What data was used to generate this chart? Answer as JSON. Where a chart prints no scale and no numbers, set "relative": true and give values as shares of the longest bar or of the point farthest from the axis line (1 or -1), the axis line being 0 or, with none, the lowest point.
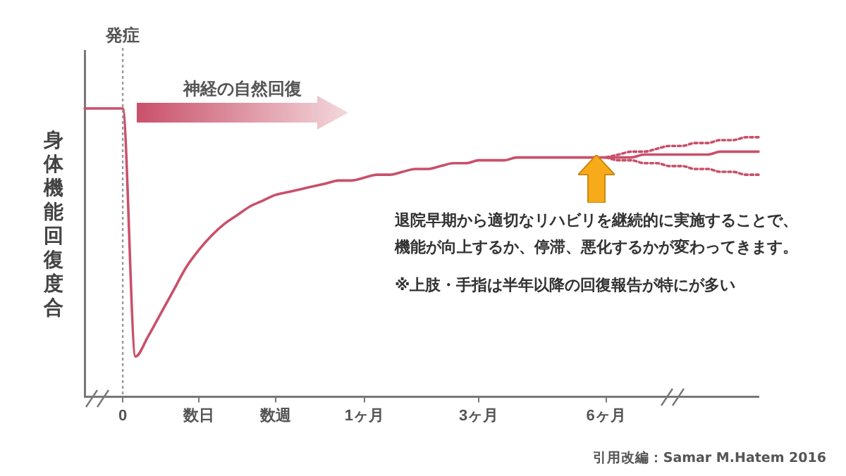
{
  "chart_data": {
    "type": "line",
    "relative": true,
    "ylabel": "身体機能回復度合",
    "categories": [
      null,
      null,
      null,
      "0",
      null,
      null,
      null,
      null,
      null,
      "数日",
      null,
      null,
      null,
      null,
      null,
      "数週",
      null,
      null,
      null,
      null,
      null,
      null,
      "1ヶ月",
      null,
      null,
      null,
      null,
      null,
      null,
      null,
      null,
      "3ヶ月",
      null,
      null,
      null,
      null,
      null,
      null,
      null,
      null,
      null,
      "6ヶ月",
      null,
      null,
      null,
      null,
      null,
      null,
      null,
      null,
      null,
      null,
      null,
      null
    ],
    "series": [
      {
        "color": "#c9506a",
        "line_style": "solid",
        "values": [
          1,
          1,
          1,
          1,
          0.14,
          0.21,
          0.29,
          0.37,
          0.45,
          0.51,
          0.56,
          0.6,
          0.63,
          0.66,
          0.68,
          0.7,
          0.71,
          0.72,
          0.73,
          0.74,
          0.75,
          0.75,
          0.76,
          0.77,
          0.77,
          0.78,
          0.79,
          0.79,
          0.8,
          0.81,
          0.81,
          0.82,
          0.82,
          0.82,
          0.83,
          0.83,
          0.83,
          0.83,
          0.83,
          0.83,
          0.83,
          0.83,
          0.83,
          0.83,
          0.84,
          0.84,
          0.84,
          0.84,
          0.84,
          0.84,
          0.85,
          0.85,
          0.85,
          0.85
        ]
      },
      {
        "color": "#c9506a",
        "line_style": "dotted",
        "values": [
          null,
          null,
          null,
          null,
          null,
          null,
          null,
          null,
          null,
          null,
          null,
          null,
          null,
          null,
          null,
          null,
          null,
          null,
          null,
          null,
          null,
          null,
          null,
          null,
          null,
          null,
          null,
          null,
          null,
          null,
          null,
          null,
          null,
          null,
          null,
          null,
          null,
          null,
          null,
          null,
          null,
          0.83,
          0.84,
          0.85,
          0.85,
          0.86,
          0.87,
          0.87,
          0.88,
          0.88,
          0.89,
          0.89,
          0.9,
          0.9
        ]
      },
      {
        "color": "#c9506a",
        "line_style": "dotted",
        "values": [
          null,
          null,
          null,
          null,
          null,
          null,
          null,
          null,
          null,
          null,
          null,
          null,
          null,
          null,
          null,
          null,
          null,
          null,
          null,
          null,
          null,
          null,
          null,
          null,
          null,
          null,
          null,
          null,
          null,
          null,
          null,
          null,
          null,
          null,
          null,
          null,
          null,
          null,
          null,
          null,
          null,
          0.83,
          0.82,
          0.82,
          0.81,
          0.81,
          0.8,
          0.8,
          0.79,
          0.79,
          0.78,
          0.78,
          0.77,
          0.77
        ]
      }
    ],
    "ref_lines": [
      {
        "axis": "x",
        "value": "0",
        "label": "発症",
        "color": "#999999",
        "line_style": "dotted"
      }
    ],
    "annotations": [
      "神経の自然回復",
      "退院早期から適切なリハビリを継続的に実施することで、機能が向上するか、停滞、悪化するかが変わってきます。",
      "※上肢・手指は半年以降の回復報告が特にが多い",
      "引用改編：Samar M.Hatem 2016"
    ],
    "tick_labels": "x",
    "grid": false,
    "legend": false,
    "marker": "none"
  }
}
